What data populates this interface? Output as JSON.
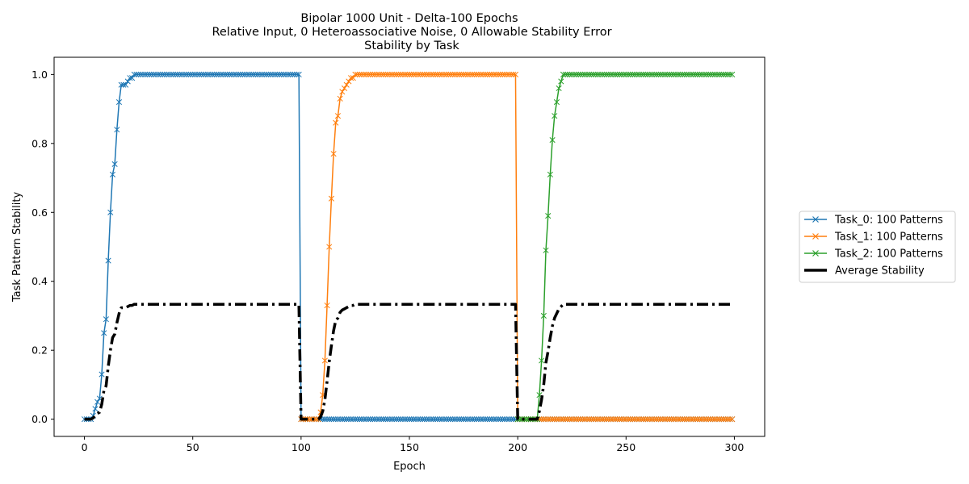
{
  "chart_data": {
    "type": "line",
    "title_lines": [
      "Bipolar 1000 Unit - Delta-100 Epochs",
      "Relative Input, 0 Heteroassociative Noise, 0 Allowable Stability Error",
      "Stability by Task"
    ],
    "xlabel": "Epoch",
    "ylabel": "Task Pattern Stability",
    "xlim": [
      -14,
      314
    ],
    "ylim": [
      -0.05,
      1.05
    ],
    "xticks": [
      0,
      50,
      100,
      150,
      200,
      250,
      300
    ],
    "xtick_labels": [
      "0",
      "50",
      "100",
      "150",
      "200",
      "250",
      "300"
    ],
    "yticks": [
      0.0,
      0.2,
      0.4,
      0.6,
      0.8,
      1.0
    ],
    "ytick_labels": [
      "0.0",
      "0.2",
      "0.4",
      "0.6",
      "0.8",
      "1.0"
    ],
    "grid": false,
    "legend_position": "outside-right",
    "task_phase_start": [
      0,
      100,
      200
    ],
    "task_phase_end": [
      99,
      199,
      299
    ],
    "ramp_epochs": [
      0,
      1,
      2,
      3,
      4,
      5,
      6,
      7,
      8,
      9,
      10,
      11,
      12,
      13,
      14,
      15,
      16,
      17,
      18,
      19,
      20,
      21,
      22,
      23,
      24,
      25
    ],
    "series": [
      {
        "name": "Task_0: 100 Patterns",
        "color": "#1f77b4",
        "marker": "x",
        "linestyle": "solid",
        "start_epoch": 0,
        "learn_ramp": [
          0.0,
          0.0,
          0.0,
          0.0,
          0.01,
          0.03,
          0.05,
          0.06,
          0.13,
          0.25,
          0.29,
          0.46,
          0.6,
          0.71,
          0.74,
          0.84,
          0.92,
          0.97,
          0.97,
          0.97,
          0.98,
          0.99,
          0.99,
          1.0,
          1.0,
          1.0
        ]
      },
      {
        "name": "Task_1: 100 Patterns",
        "color": "#ff7f0e",
        "marker": "x",
        "linestyle": "solid",
        "start_epoch": 100,
        "learn_ramp": [
          0.0,
          0.0,
          0.0,
          0.0,
          0.0,
          0.0,
          0.0,
          0.0,
          0.0,
          0.02,
          0.07,
          0.17,
          0.33,
          0.5,
          0.64,
          0.77,
          0.86,
          0.88,
          0.93,
          0.95,
          0.96,
          0.97,
          0.98,
          0.99,
          0.99,
          1.0
        ]
      },
      {
        "name": "Task_2: 100 Patterns",
        "color": "#2ca02c",
        "marker": "x",
        "linestyle": "solid",
        "start_epoch": 200,
        "learn_ramp": [
          0.0,
          0.0,
          0.0,
          0.0,
          0.0,
          0.0,
          0.0,
          0.0,
          0.0,
          0.0,
          0.07,
          0.17,
          0.3,
          0.49,
          0.59,
          0.71,
          0.81,
          0.88,
          0.92,
          0.96,
          0.98,
          1.0,
          1.0,
          1.0,
          1.0,
          1.0
        ]
      }
    ],
    "average": {
      "name": "Average Stability",
      "color": "#000000",
      "linestyle": "dashdot",
      "description": "mean of the three task series at each epoch"
    }
  }
}
